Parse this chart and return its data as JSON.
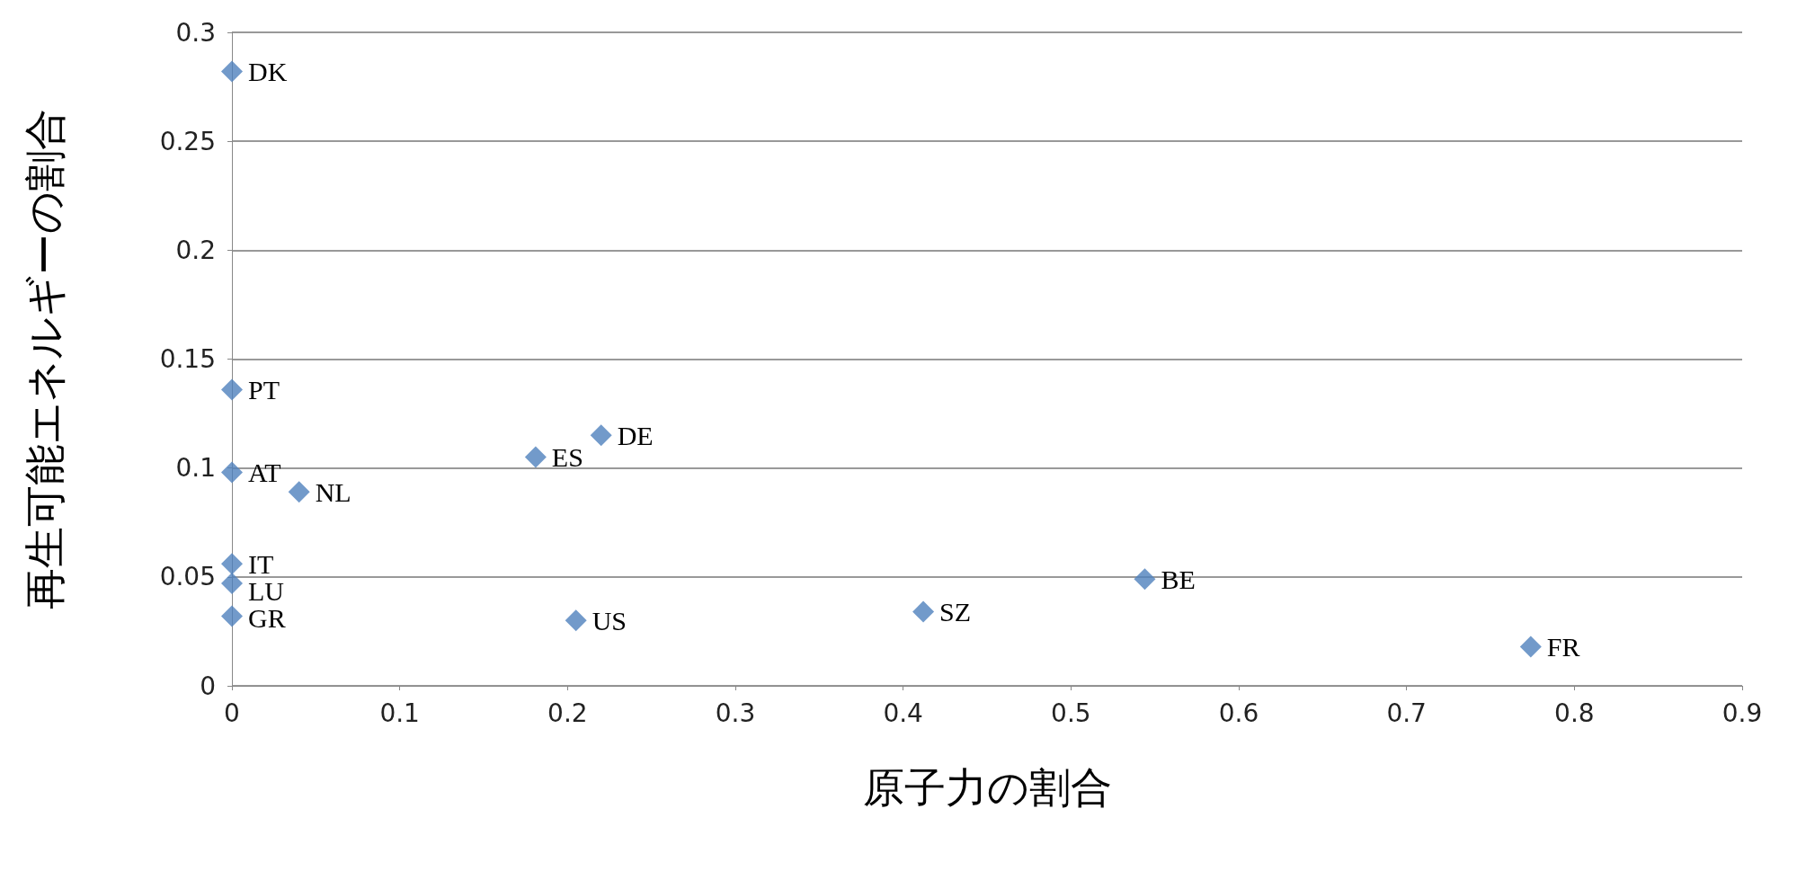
{
  "chart_data": {
    "type": "scatter",
    "xlabel": "原子力の割合",
    "ylabel": "再生可能エネルギーの割合",
    "x": [
      0,
      0,
      0,
      0.04,
      0,
      0,
      0,
      0.181,
      0.22,
      0.205,
      0.412,
      0.544,
      0.774
    ],
    "values": [
      0.282,
      0.136,
      0.098,
      0.089,
      0.056,
      0.047,
      0.032,
      0.105,
      0.115,
      0.03,
      0.034,
      0.049,
      0.018
    ],
    "color": "#4f81bd",
    "marker": "diamond",
    "grid": "y",
    "xlim": [
      0,
      0.9
    ],
    "xticks": [
      0,
      0.1,
      0.2,
      0.3,
      0.4,
      0.5,
      0.6,
      0.7,
      0.8,
      0.9
    ],
    "ylim": [
      0,
      0.3
    ],
    "yticks": [
      0,
      0.05,
      0.1,
      0.15,
      0.2,
      0.25,
      0.3
    ],
    "annotations": [
      {
        "text": "DK",
        "x": 0,
        "y": 0.282
      },
      {
        "text": "PT",
        "x": 0,
        "y": 0.136
      },
      {
        "text": "AT",
        "x": 0,
        "y": 0.098
      },
      {
        "text": "NL",
        "x": 0.04,
        "y": 0.089
      },
      {
        "text": "IT",
        "x": 0,
        "y": 0.056
      },
      {
        "text": "LU",
        "x": 0,
        "y": 0.047
      },
      {
        "text": "GR",
        "x": 0,
        "y": 0.032
      },
      {
        "text": "ES",
        "x": 0.181,
        "y": 0.105
      },
      {
        "text": "DE",
        "x": 0.22,
        "y": 0.115
      },
      {
        "text": "US",
        "x": 0.205,
        "y": 0.03
      },
      {
        "text": "SZ",
        "x": 0.412,
        "y": 0.034
      },
      {
        "text": "BE",
        "x": 0.544,
        "y": 0.049
      },
      {
        "text": "FR",
        "x": 0.774,
        "y": 0.018
      }
    ]
  }
}
